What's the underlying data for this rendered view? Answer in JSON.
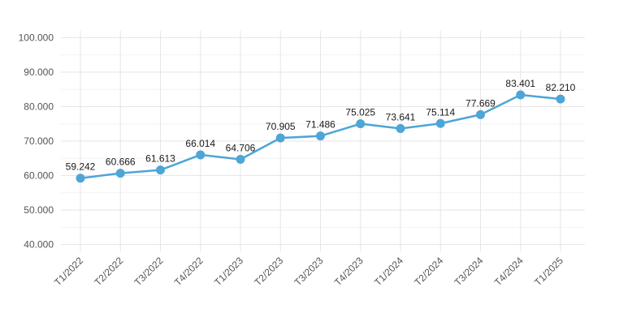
{
  "chart_data": {
    "type": "line",
    "title": "",
    "xlabel": "",
    "ylabel": "",
    "categories": [
      "T1/2022",
      "T2/2022",
      "T3/2022",
      "T4/2022",
      "T1/2023",
      "T2/2023",
      "T3/2023",
      "T4/2023",
      "T1/2024",
      "T2/2024",
      "T3/2024",
      "T4/2024",
      "T1/2025"
    ],
    "values": [
      59242,
      60666,
      61613,
      66014,
      64706,
      70905,
      71486,
      75025,
      73641,
      75114,
      77669,
      83401,
      82210
    ],
    "data_labels": [
      "59.242",
      "60.666",
      "61.613",
      "66.014",
      "64.706",
      "70.905",
      "71.486",
      "75.025",
      "73.641",
      "75.114",
      "77.669",
      "83.401",
      "82.210"
    ],
    "yticks": [
      40000,
      50000,
      60000,
      70000,
      80000,
      90000,
      100000
    ],
    "ytick_labels": [
      "40.000",
      "50.000",
      "60.000",
      "70.000",
      "80.000",
      "90.000",
      "100.000"
    ],
    "ylim": [
      38000,
      102000
    ],
    "grid": true,
    "legend": "none",
    "colors": {
      "line": "#4ea5d6",
      "point": "#4ea5d6"
    }
  }
}
